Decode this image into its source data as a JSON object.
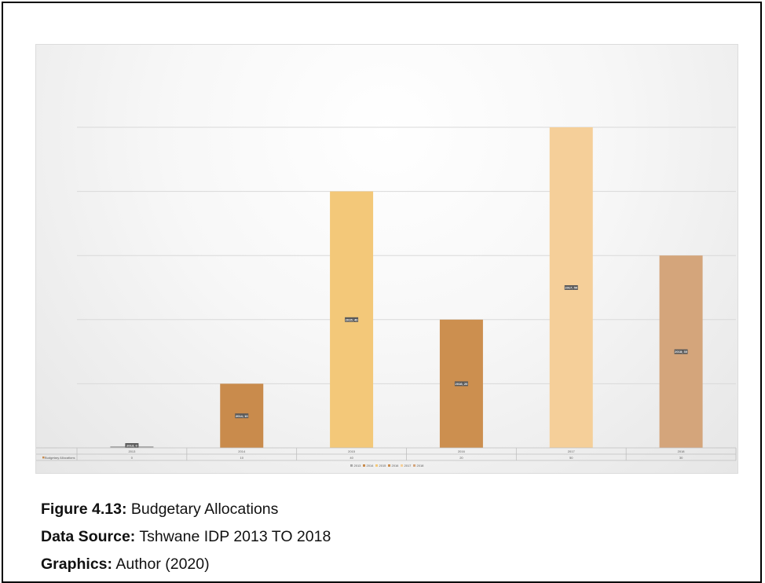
{
  "chart_data": {
    "type": "bar",
    "categories": [
      "2013",
      "2014",
      "2015",
      "2016",
      "2017",
      "2018"
    ],
    "series": [
      {
        "name": "Budgetary Allocations",
        "values": [
          0,
          10,
          40,
          20,
          50,
          30
        ]
      }
    ],
    "data_labels": [
      "2013; 0",
      "2014; 10",
      "2015; 40",
      "2016; 20",
      "2017; 50",
      "2018; 30"
    ],
    "table_row_label": "Budgetary Allocations",
    "legend": [
      "2013",
      "2014",
      "2015",
      "2016",
      "2017",
      "2018"
    ],
    "legend_position": "bottom",
    "ylim": [
      0,
      50
    ],
    "grid": true,
    "colors": [
      "#a8a8a8",
      "#c98b4c",
      "#f3c879",
      "#cc8f4f",
      "#f5cf99",
      "#d4a57b"
    ]
  },
  "caption": {
    "figure_label": "Figure 4.13:",
    "figure_text": " Budgetary Allocations",
    "source_label": "Data Source:",
    "source_text": " Tshwane IDP 2013 TO 2018",
    "graphics_label": "Graphics:",
    "graphics_text": " Author (2020)"
  }
}
